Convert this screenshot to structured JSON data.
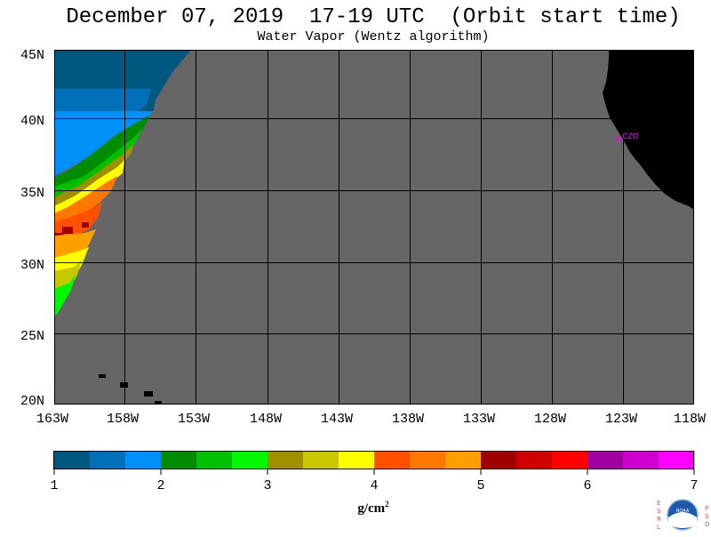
{
  "title": "December 07, 2019  17-19 UTC  (Orbit start time)",
  "subtitle": "Water Vapor (Wentz algorithm)",
  "map": {
    "lat_labels": [
      "45N",
      "40N",
      "35N",
      "30N",
      "25N",
      "20N"
    ],
    "lon_labels": [
      "163W",
      "158W",
      "153W",
      "148W",
      "143W",
      "138W",
      "133W",
      "128W",
      "123W",
      "118W"
    ],
    "station_label": "CZD",
    "station_color": "#ff00ff",
    "no_data_color": "#666666",
    "land_color": "#000000"
  },
  "colorbar": {
    "tick_labels": [
      "1",
      "2",
      "3",
      "4",
      "5",
      "6",
      "7"
    ],
    "range": [
      1,
      7
    ],
    "colors": [
      "#005880",
      "#0070b8",
      "#0090f8",
      "#008c00",
      "#00c000",
      "#00f800",
      "#a09000",
      "#c8c800",
      "#ffff00",
      "#ff5000",
      "#ff7800",
      "#ffa000",
      "#a00000",
      "#d00000",
      "#ff0000",
      "#a000a0",
      "#d000d0",
      "#ff00ff"
    ],
    "unit": "g/cm",
    "unit_power": "2"
  },
  "logo": {
    "left_letters": "ESRL",
    "right_letters": "PSD",
    "center_text": "NOAA"
  }
}
